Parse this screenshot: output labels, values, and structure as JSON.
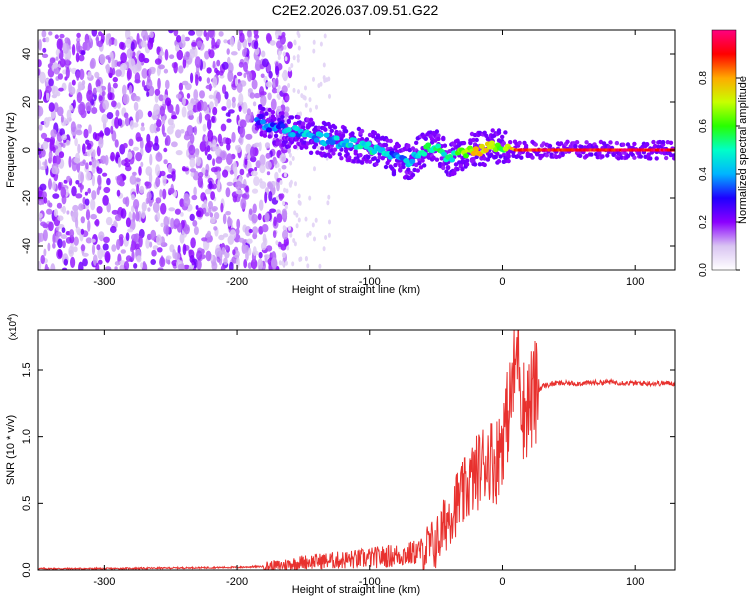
{
  "title": "C2E2.2026.037.09.51.G22",
  "chart_data": [
    {
      "type": "heatmap",
      "xlabel": "Height of straight line (km)",
      "ylabel": "Frequency (Hz)",
      "xlim": [
        -350,
        130
      ],
      "ylim": [
        -50,
        50
      ],
      "x_ticks": [
        -300,
        -200,
        -100,
        0,
        100
      ],
      "y_ticks": [
        -40,
        -20,
        0,
        20,
        40
      ],
      "colorbar": {
        "label": "Normalized spectral amplitude",
        "range": [
          0,
          1
        ],
        "ticks": [
          "0.0",
          "0.2",
          "0.4",
          "0.6",
          "0.8"
        ],
        "colors": [
          "#ffffff",
          "#d9c4f2",
          "#8b00ff",
          "#1e00ff",
          "#00b4ff",
          "#00ffc8",
          "#28ff00",
          "#c8ff00",
          "#ffaa00",
          "#ff0000",
          "#ff0080"
        ]
      },
      "ridge": {
        "x": [
          -185,
          -175,
          -160,
          -140,
          -120,
          -100,
          -90,
          -80,
          -70,
          -60,
          -50,
          -40,
          -30,
          -20,
          -10,
          0,
          10,
          20,
          130
        ],
        "y": [
          13,
          10,
          8,
          5,
          3,
          1,
          0,
          -4,
          -5,
          0,
          1,
          -4,
          -1,
          0,
          1,
          2,
          0,
          0,
          0
        ],
        "amp": [
          0.3,
          0.35,
          0.4,
          0.4,
          0.45,
          0.5,
          0.45,
          0.35,
          0.4,
          0.5,
          0.55,
          0.5,
          0.6,
          0.75,
          0.7,
          0.6,
          0.85,
          0.9,
          0.95
        ]
      },
      "noise_region_x": [
        -350,
        -160
      ]
    },
    {
      "type": "line",
      "xlabel": "Height of straight line (km)",
      "ylabel": "SNR (10 * v/v)",
      "y_multiplier": "(x10^4)",
      "multiplier_base": "(x10",
      "multiplier_exp": "4",
      "multiplier_close": ")",
      "xlim": [
        -350,
        130
      ],
      "ylim": [
        0,
        1.8
      ],
      "x_ticks": [
        -300,
        -200,
        -100,
        0,
        100
      ],
      "y_ticks": [
        "0.0",
        "0.5",
        "1.0",
        "1.5"
      ],
      "color": "#e8312e",
      "series": {
        "x": [
          -350,
          -300,
          -250,
          -200,
          -170,
          -150,
          -130,
          -110,
          -90,
          -70,
          -60,
          -50,
          -45,
          -40,
          -35,
          -30,
          -25,
          -20,
          -15,
          -10,
          -5,
          0,
          5,
          10,
          12,
          15,
          20,
          25,
          30,
          40,
          60,
          80,
          100,
          130
        ],
        "y": [
          0.01,
          0.01,
          0.015,
          0.02,
          0.03,
          0.06,
          0.07,
          0.08,
          0.1,
          0.12,
          0.15,
          0.2,
          0.3,
          0.42,
          0.5,
          0.55,
          0.65,
          0.72,
          0.8,
          0.85,
          0.8,
          1.0,
          1.2,
          1.55,
          1.75,
          1.2,
          1.25,
          1.32,
          1.38,
          1.4,
          1.4,
          1.41,
          1.4,
          1.4
        ]
      }
    }
  ]
}
